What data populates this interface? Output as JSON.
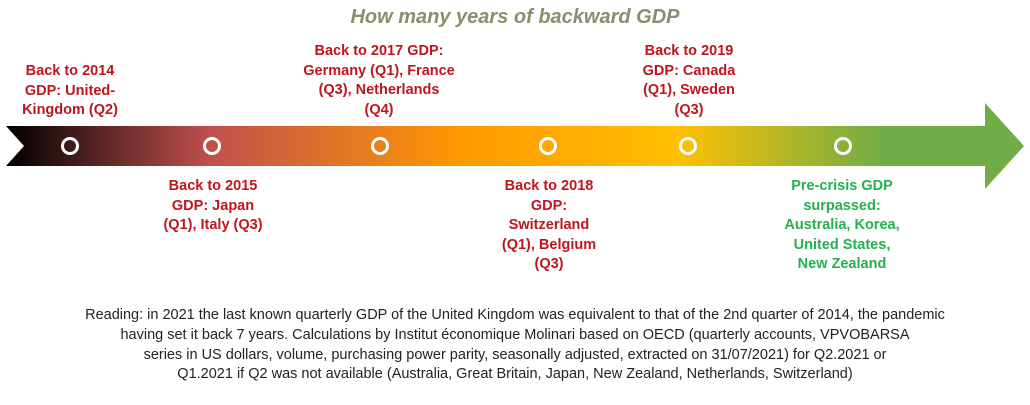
{
  "title": "How many years of backward GDP",
  "colors": {
    "title": "#8c8c6e",
    "label_red": "#c0141e",
    "label_green": "#22b14c",
    "gradient": [
      "#000000",
      "#c0504d",
      "#ff9900",
      "#ffc000",
      "#70ad47"
    ]
  },
  "milestones": [
    {
      "lines": [
        "Back to 2014",
        "GDP: United-",
        "Kingdom (Q2)"
      ],
      "side": "above",
      "color": "red"
    },
    {
      "lines": [
        "Back to 2015",
        "GDP: Japan",
        "(Q1), Italy (Q3)"
      ],
      "side": "below",
      "color": "red"
    },
    {
      "lines": [
        "Back to 2017 GDP:",
        "Germany (Q1), France",
        "(Q3), Netherlands",
        "(Q4)"
      ],
      "side": "above",
      "color": "red"
    },
    {
      "lines": [
        "Back to 2018",
        "GDP:",
        "Switzerland",
        "(Q1), Belgium",
        "(Q3)"
      ],
      "side": "below",
      "color": "red"
    },
    {
      "lines": [
        "Back to 2019",
        "GDP: Canada",
        "(Q1), Sweden",
        "(Q3)"
      ],
      "side": "above",
      "color": "red"
    },
    {
      "lines": [
        "Pre-crisis GDP",
        "surpassed:",
        "Australia, Korea,",
        "United States,",
        "New Zealand"
      ],
      "side": "below",
      "color": "green"
    }
  ],
  "footer": {
    "lines": [
      "Reading: in 2021 the last known quarterly GDP of the United Kingdom was equivalent to that of the 2nd quarter of 2014, the pandemic",
      "having set it back 7 years. Calculations by Institut économique Molinari based on OECD (quarterly accounts, VPVOBARSA",
      "series in US dollars, volume, purchasing power parity, seasonally adjusted, extracted on 31/07/2021) for Q2.2021 or",
      "Q1.2021 if Q2 was not available (Australia, Great Britain, Japan, New Zealand, Netherlands, Switzerland)"
    ]
  }
}
